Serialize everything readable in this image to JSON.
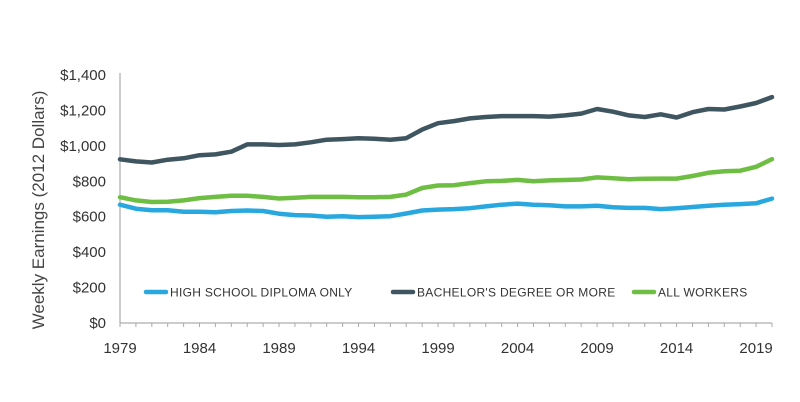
{
  "chart_data": {
    "type": "line",
    "ylabel": "Weekly Earnings (2012 Dollars)",
    "xlabel": "",
    "ylim": [
      0,
      1400
    ],
    "xlim": [
      1979,
      2020
    ],
    "y_ticks": [
      0,
      200,
      400,
      600,
      800,
      1000,
      1200,
      1400
    ],
    "y_tick_labels": [
      "$0",
      "$200",
      "$400",
      "$600",
      "$800",
      "$1,000",
      "$1,200",
      "$1,400"
    ],
    "x_ticks": [
      1979,
      1984,
      1989,
      1994,
      1999,
      2004,
      2009,
      2014,
      2019
    ],
    "x_tick_labels": [
      "1979",
      "1984",
      "1989",
      "1994",
      "1999",
      "2004",
      "2009",
      "2014",
      "2019"
    ],
    "grid": false,
    "legend_placement": "bottom-inside",
    "x": [
      1979,
      1980,
      1981,
      1982,
      1983,
      1984,
      1985,
      1986,
      1987,
      1988,
      1989,
      1990,
      1991,
      1992,
      1993,
      1994,
      1995,
      1996,
      1997,
      1998,
      1999,
      2000,
      2001,
      2002,
      2003,
      2004,
      2005,
      2006,
      2007,
      2008,
      2009,
      2010,
      2011,
      2012,
      2013,
      2014,
      2015,
      2016,
      2017,
      2018,
      2019,
      2020
    ],
    "series": [
      {
        "name": "HIGH SCHOOL DIPLOMA ONLY",
        "color": "#29a8e0",
        "values": [
          668,
          645,
          636,
          636,
          628,
          628,
          625,
          632,
          635,
          632,
          617,
          609,
          607,
          600,
          603,
          598,
          600,
          603,
          618,
          635,
          640,
          643,
          648,
          658,
          668,
          674,
          668,
          665,
          658,
          658,
          662,
          653,
          650,
          650,
          643,
          648,
          655,
          662,
          668,
          671,
          676,
          702
        ]
      },
      {
        "name": "BACHELOR'S DEGREE OR MORE",
        "color": "#3f5560",
        "values": [
          924,
          912,
          906,
          922,
          930,
          947,
          952,
          967,
          1008,
          1008,
          1005,
          1008,
          1020,
          1035,
          1038,
          1043,
          1040,
          1035,
          1043,
          1092,
          1128,
          1140,
          1155,
          1163,
          1168,
          1168,
          1168,
          1165,
          1172,
          1182,
          1208,
          1193,
          1172,
          1163,
          1178,
          1160,
          1190,
          1208,
          1205,
          1222,
          1242,
          1275
        ]
      },
      {
        "name": "ALL WORKERS",
        "color": "#6fbe44",
        "values": [
          710,
          692,
          683,
          685,
          692,
          705,
          712,
          718,
          718,
          712,
          703,
          707,
          712,
          712,
          712,
          710,
          710,
          712,
          725,
          762,
          776,
          778,
          790,
          800,
          802,
          808,
          800,
          805,
          807,
          810,
          822,
          817,
          812,
          814,
          815,
          815,
          830,
          848,
          857,
          860,
          882,
          925
        ]
      }
    ]
  }
}
